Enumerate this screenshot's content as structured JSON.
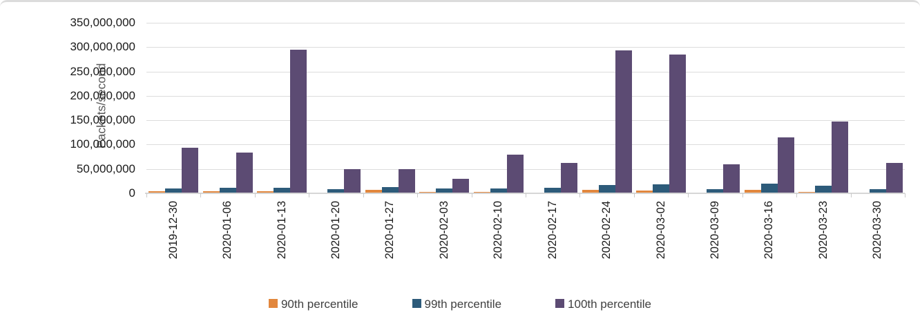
{
  "chart_data": {
    "type": "bar",
    "title": "",
    "xlabel": "",
    "ylabel": "Packets/second",
    "ylim": [
      0,
      350000000
    ],
    "ytick_step": 50000000,
    "grid": true,
    "legend_position": "bottom",
    "categories": [
      "2019-12-30",
      "2020-01-06",
      "2020-01-13",
      "2020-01-20",
      "2020-01-27",
      "2020-02-03",
      "2020-02-10",
      "2020-02-17",
      "2020-02-24",
      "2020-03-02",
      "2020-03-09",
      "2020-03-16",
      "2020-03-23",
      "2020-03-30"
    ],
    "series": [
      {
        "name": "90th percentile",
        "color": "#E2873D",
        "values": [
          4000000,
          4000000,
          4000000,
          2000000,
          7000000,
          3000000,
          3000000,
          2000000,
          7000000,
          6000000,
          2000000,
          7000000,
          3000000,
          2000000
        ]
      },
      {
        "name": "99th percentile",
        "color": "#2D5B7A",
        "values": [
          10000000,
          12000000,
          11000000,
          9000000,
          13000000,
          10000000,
          10000000,
          12000000,
          17000000,
          19000000,
          9000000,
          20000000,
          15000000,
          8000000
        ]
      },
      {
        "name": "100th percentile",
        "color": "#5C4B73",
        "values": [
          93000000,
          83000000,
          295000000,
          50000000,
          50000000,
          30000000,
          79000000,
          62000000,
          293000000,
          285000000,
          59000000,
          115000000,
          147000000,
          62000000
        ]
      }
    ],
    "gridline_color": "#dcdcdc"
  }
}
